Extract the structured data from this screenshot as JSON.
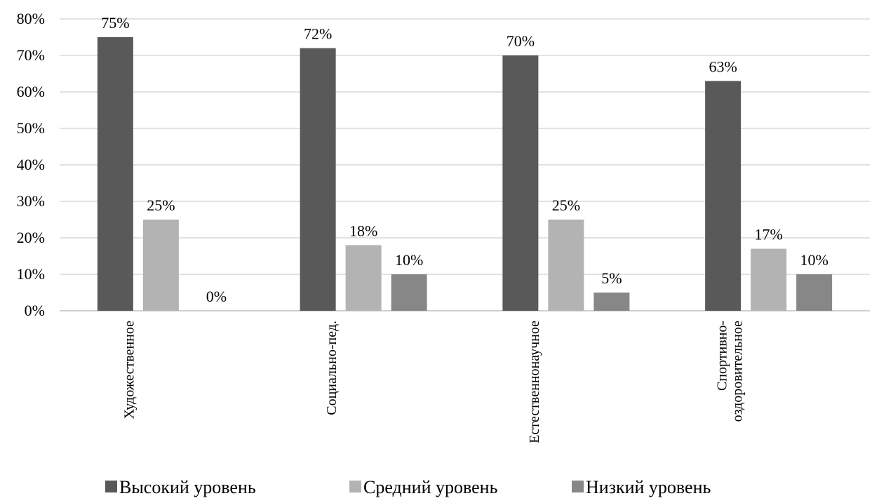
{
  "chart_data": {
    "type": "bar",
    "categories": [
      [
        "Художественное"
      ],
      [
        "Социально-пед."
      ],
      [
        "Естественнонаучное"
      ],
      [
        "Спортивно-",
        "оздоровительное"
      ]
    ],
    "series": [
      {
        "name": "Высокий уровень",
        "color": "#595959",
        "values": [
          75,
          72,
          70,
          63
        ],
        "labels": [
          "75%",
          "72%",
          "70%",
          "63%"
        ]
      },
      {
        "name": "Средний уровень",
        "color": "#b3b3b3",
        "values": [
          25,
          18,
          25,
          17
        ],
        "labels": [
          "25%",
          "18%",
          "25%",
          "17%"
        ]
      },
      {
        "name": "Низкий уровень",
        "color": "#878787",
        "values": [
          0,
          10,
          5,
          10
        ],
        "labels": [
          "0%",
          "10%",
          "5%",
          "10%"
        ]
      }
    ],
    "yticks": [
      "0%",
      "10%",
      "20%",
      "30%",
      "40%",
      "50%",
      "60%",
      "70%",
      "80%"
    ],
    "ylim": [
      0,
      80
    ],
    "ytick_step": 10,
    "grid": true,
    "legend_position": "bottom",
    "title": "",
    "xlabel": "",
    "ylabel": ""
  }
}
